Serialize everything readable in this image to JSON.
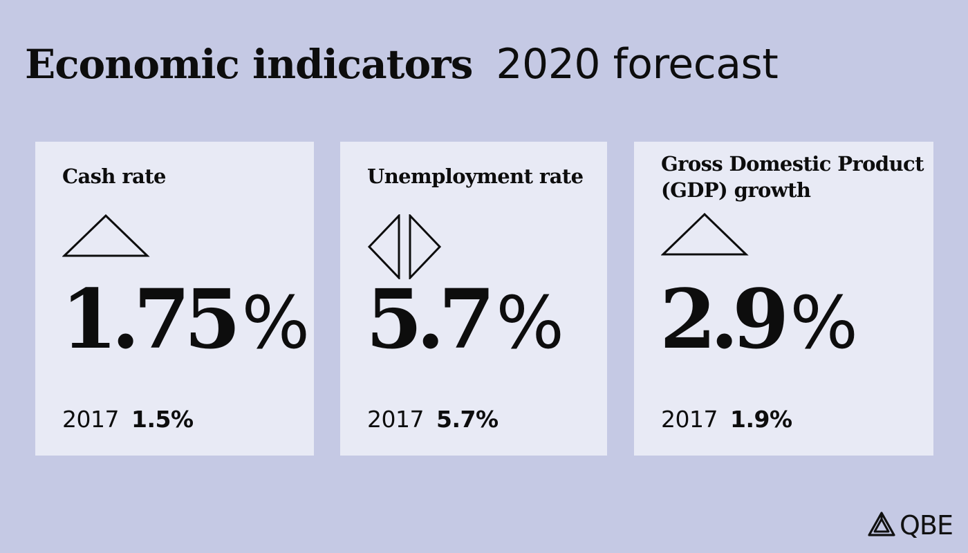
{
  "title": {
    "main": "Economic indicators",
    "sub": "2020 forecast"
  },
  "indicators": [
    {
      "label": "Cash rate",
      "trend_icon": "triangle-up-icon",
      "value": "1.75",
      "unit": "%",
      "prev_year": "2017",
      "prev_value": "1.5%"
    },
    {
      "label": "Unemployment rate",
      "trend_icon": "steady-arrows-icon",
      "value": "5.7",
      "unit": "%",
      "prev_year": "2017",
      "prev_value": "5.7%"
    },
    {
      "label": "Gross Domestic Product (GDP) growth",
      "trend_icon": "triangle-up-icon",
      "value": "2.9",
      "unit": "%",
      "prev_year": "2017",
      "prev_value": "1.9%"
    }
  ],
  "brand": {
    "logo_text": "QBE",
    "logo_icon": "qbe-logo-icon"
  },
  "colors": {
    "background": "#c5c9e4",
    "card": "#e8eaf5",
    "text": "#0d0d0d"
  }
}
